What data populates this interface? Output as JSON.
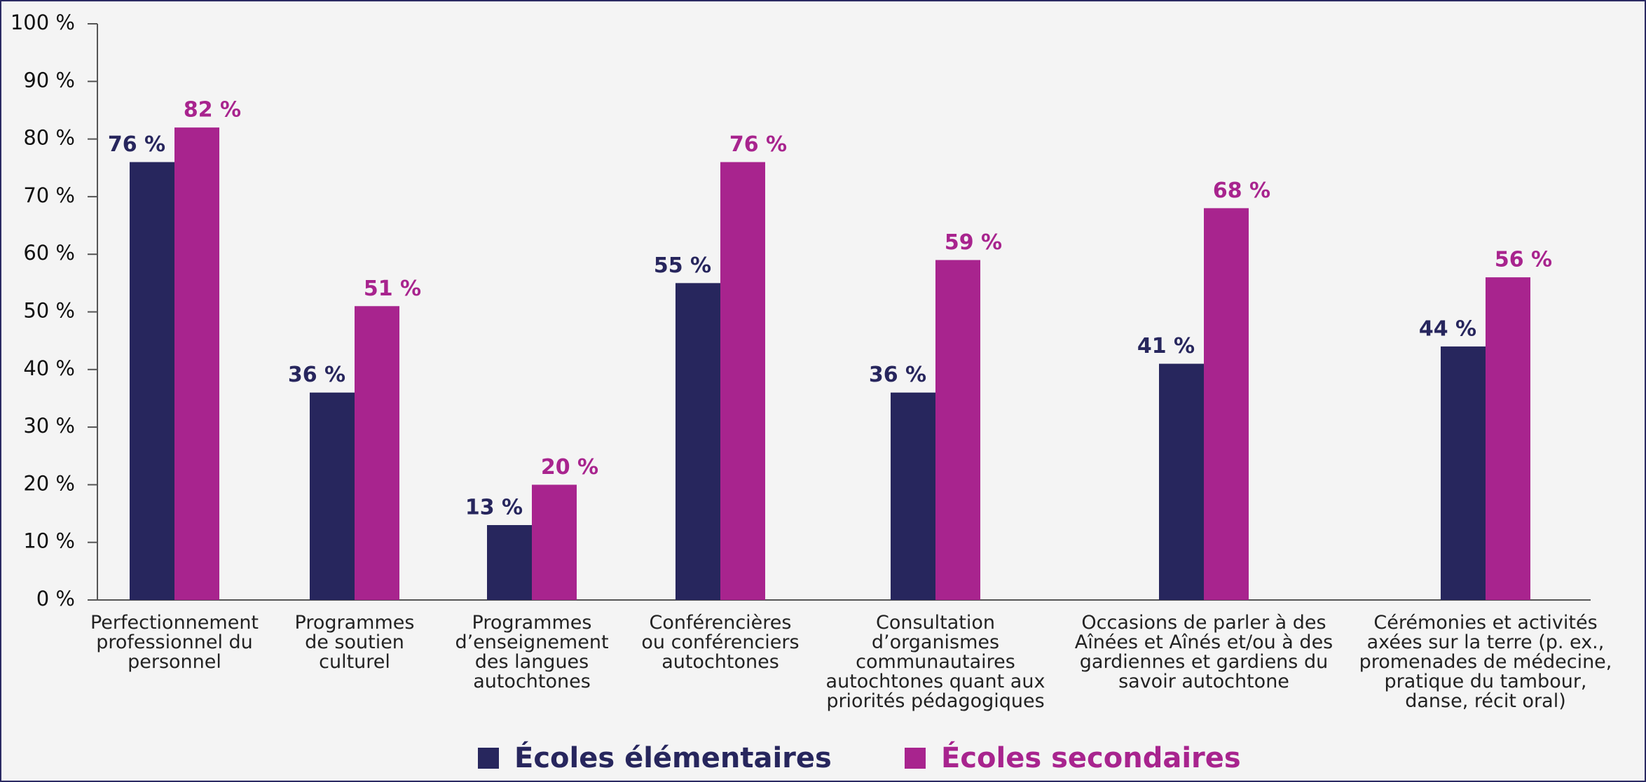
{
  "chart_data": {
    "type": "bar",
    "categories": [
      [
        "Perfectionnement",
        "professionnel du",
        "personnel"
      ],
      [
        "Programmes",
        "de soutien",
        "culturel"
      ],
      [
        "Programmes",
        "d’enseignement",
        "des langues",
        "autochtones"
      ],
      [
        "Conférencières",
        "ou conférenciers",
        "autochtones"
      ],
      [
        "Consultation",
        "d’organismes",
        "communautaires",
        "autochtones quant aux",
        "priorités pédagogiques"
      ],
      [
        "Occasions de parler à des",
        "Aînées et Aînés et/ou à des",
        "gardiennes et gardiens du",
        "savoir autochtone"
      ],
      [
        "Cérémonies et activités",
        "axées sur la terre (p. ex.,",
        "promenades de médecine,",
        "pratique du tambour,",
        "danse, récit oral)"
      ]
    ],
    "series": [
      {
        "name": "Écoles élémentaires",
        "color": "#27265d",
        "values": [
          76,
          36,
          13,
          55,
          36,
          41,
          44
        ],
        "value_labels": [
          "76 %",
          "36 %",
          "13 %",
          "55 %",
          "36 %",
          "41 %",
          "44 %"
        ]
      },
      {
        "name": "Écoles secondaires",
        "color": "#a8248e",
        "values": [
          82,
          51,
          20,
          76,
          59,
          68,
          56
        ],
        "value_labels": [
          "82 %",
          "51 %",
          "20 %",
          "76 %",
          "59 %",
          "68 %",
          "56 %"
        ]
      }
    ],
    "ylim": [
      0,
      100
    ],
    "yticks": [
      {
        "value": 0,
        "label": "0 %"
      },
      {
        "value": 10,
        "label": "10 %"
      },
      {
        "value": 20,
        "label": "20 %"
      },
      {
        "value": 30,
        "label": "30 %"
      },
      {
        "value": 40,
        "label": "40 %"
      },
      {
        "value": 50,
        "label": "50 %"
      },
      {
        "value": 60,
        "label": "60 %"
      },
      {
        "value": 70,
        "label": "70 %"
      },
      {
        "value": 80,
        "label": "80 %"
      },
      {
        "value": 90,
        "label": "90 %"
      },
      {
        "value": 100,
        "label": "100 %"
      }
    ],
    "grid": false,
    "legend": "bottom"
  }
}
